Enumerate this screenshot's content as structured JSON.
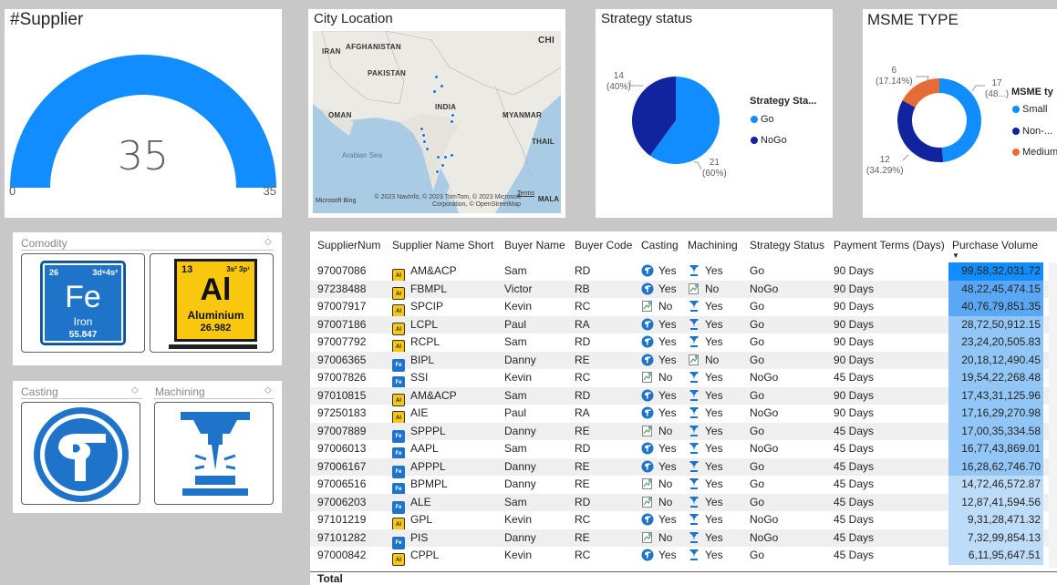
{
  "gauge": {
    "title": "#Supplier",
    "value": "35",
    "min": "0",
    "max": "35",
    "fill_fraction": 1.0,
    "color": "#118dff"
  },
  "map": {
    "title": "City Location",
    "labels": [
      "AFGHANISTAN",
      "IRAN",
      "PAKISTAN",
      "CHI",
      "INDIA",
      "OMAN",
      "MYANMAR",
      "THAIL",
      "MALA"
    ],
    "sea": "Arabian Sea",
    "copyright": "© 2023 NavInfo, © 2023 TomTom, © 2023 Microsoft Corporation, © OpenStreetMap",
    "terms": "Terms",
    "provider": "Microsoft Bing"
  },
  "strategy": {
    "title": "Strategy status",
    "legend_title": "Strategy Sta...",
    "items": [
      {
        "label": "Go",
        "value": 21,
        "pct": "(60%)",
        "color": "#118dff"
      },
      {
        "label": "NoGo",
        "value": 14,
        "pct": "(40%)",
        "color": "#12239e"
      }
    ]
  },
  "msme": {
    "title": "MSME TYPE",
    "legend_title": "MSME ty",
    "items": [
      {
        "label": "Small",
        "value": 17,
        "pct": "(48...)",
        "color": "#118dff"
      },
      {
        "label": "Non-...",
        "value": 12,
        "pct": "(34.29%)",
        "color": "#12239e"
      },
      {
        "label": "Medium",
        "value": 6,
        "pct": "(17.14%)",
        "color": "#e66c37"
      }
    ]
  },
  "comodity": {
    "title": "Comodity",
    "fe": {
      "number": "26",
      "config": "3d⁶4s²",
      "symbol": "Fe",
      "name": "Iron",
      "mass": "55.847"
    },
    "al": {
      "number": "13",
      "config": "3s² 3p¹",
      "symbol": "Al",
      "name": "Aluminium",
      "mass": "26.982"
    }
  },
  "casting_panel": {
    "title": "Casting"
  },
  "machining_panel": {
    "title": "Machining"
  },
  "table": {
    "headers": [
      "SupplierNum",
      "Supplier Name Short",
      "Buyer Name",
      "Buyer Code",
      "Casting",
      "Machining",
      "Strategy Status",
      "Payment Terms (Days)",
      "Purchase Volume"
    ],
    "total_label": "Total",
    "rows": [
      {
        "num": "97007086",
        "metal": "al",
        "name": "AM&ACP",
        "buyer": "Sam",
        "code": "RD",
        "casting": "Yes",
        "machining": "Yes",
        "status": "Go",
        "terms": "90 Days",
        "volume": "99,58,32,031.72",
        "level": 1.0
      },
      {
        "num": "97238488",
        "metal": "al",
        "name": "FBMPL",
        "buyer": "Victor",
        "code": "RB",
        "casting": "Yes",
        "machining": "No",
        "status": "NoGo",
        "terms": "90 Days",
        "volume": "48,22,45,474.15",
        "level": 0.484
      },
      {
        "num": "97007917",
        "metal": "al",
        "name": "SPCIP",
        "buyer": "Kevin",
        "code": "RC",
        "casting": "No",
        "machining": "Yes",
        "status": "Go",
        "terms": "90 Days",
        "volume": "40,76,79,851.35",
        "level": 0.409
      },
      {
        "num": "97007186",
        "metal": "al",
        "name": "LCPL",
        "buyer": "Paul",
        "code": "RA",
        "casting": "Yes",
        "machining": "Yes",
        "status": "Go",
        "terms": "90 Days",
        "volume": "28,72,50,912.15",
        "level": 0.288
      },
      {
        "num": "97007792",
        "metal": "al",
        "name": "RCPL",
        "buyer": "Sam",
        "code": "RD",
        "casting": "Yes",
        "machining": "Yes",
        "status": "Go",
        "terms": "90 Days",
        "volume": "23,24,20,505.83",
        "level": 0.233
      },
      {
        "num": "97006365",
        "metal": "fe",
        "name": "BIPL",
        "buyer": "Danny",
        "code": "RE",
        "casting": "Yes",
        "machining": "No",
        "status": "Go",
        "terms": "90 Days",
        "volume": "20,18,12,490.45",
        "level": 0.203
      },
      {
        "num": "97007826",
        "metal": "fe",
        "name": "SSI",
        "buyer": "Kevin",
        "code": "RC",
        "casting": "No",
        "machining": "Yes",
        "status": "NoGo",
        "terms": "45 Days",
        "volume": "19,54,22,268.48",
        "level": 0.196
      },
      {
        "num": "97010815",
        "metal": "al",
        "name": "AM&ACP",
        "buyer": "Sam",
        "code": "RD",
        "casting": "Yes",
        "machining": "Yes",
        "status": "Go",
        "terms": "90 Days",
        "volume": "17,43,31,125.96",
        "level": 0.175
      },
      {
        "num": "97250183",
        "metal": "al",
        "name": "AIE",
        "buyer": "Paul",
        "code": "RA",
        "casting": "Yes",
        "machining": "Yes",
        "status": "NoGo",
        "terms": "90 Days",
        "volume": "17,16,29,270.98",
        "level": 0.172
      },
      {
        "num": "97007889",
        "metal": "fe",
        "name": "SPPPL",
        "buyer": "Danny",
        "code": "RE",
        "casting": "No",
        "machining": "Yes",
        "status": "Go",
        "terms": "45 Days",
        "volume": "17,00,35,334.58",
        "level": 0.171
      },
      {
        "num": "97006013",
        "metal": "fe",
        "name": "AAPL",
        "buyer": "Sam",
        "code": "RD",
        "casting": "Yes",
        "machining": "Yes",
        "status": "NoGo",
        "terms": "45 Days",
        "volume": "16,77,43,869.01",
        "level": 0.168
      },
      {
        "num": "97006167",
        "metal": "fe",
        "name": "APPPL",
        "buyer": "Danny",
        "code": "RE",
        "casting": "Yes",
        "machining": "Yes",
        "status": "Go",
        "terms": "45 Days",
        "volume": "16,28,62,746.70",
        "level": 0.164
      },
      {
        "num": "97006516",
        "metal": "fe",
        "name": "BPMPL",
        "buyer": "Danny",
        "code": "RE",
        "casting": "No",
        "machining": "Yes",
        "status": "Go",
        "terms": "45 Days",
        "volume": "14,72,46,572.87",
        "level": 0.148
      },
      {
        "num": "97006203",
        "metal": "fe",
        "name": "ALE",
        "buyer": "Sam",
        "code": "RD",
        "casting": "No",
        "machining": "Yes",
        "status": "Go",
        "terms": "45 Days",
        "volume": "12,87,41,594.56",
        "level": 0.129
      },
      {
        "num": "97101219",
        "metal": "al",
        "name": "GPL",
        "buyer": "Kevin",
        "code": "RC",
        "casting": "Yes",
        "machining": "Yes",
        "status": "NoGo",
        "terms": "45 Days",
        "volume": "9,31,28,471.32",
        "level": 0.094
      },
      {
        "num": "97101282",
        "metal": "fe",
        "name": "PIS",
        "buyer": "Danny",
        "code": "RE",
        "casting": "No",
        "machining": "Yes",
        "status": "NoGo",
        "terms": "45 Days",
        "volume": "7,32,99,854.13",
        "level": 0.074
      },
      {
        "num": "97000842",
        "metal": "al",
        "name": "CPPL",
        "buyer": "Kevin",
        "code": "RC",
        "casting": "Yes",
        "machining": "Yes",
        "status": "Go",
        "terms": "45 Days",
        "volume": "6,11,95,647.51",
        "level": 0.061
      }
    ]
  }
}
